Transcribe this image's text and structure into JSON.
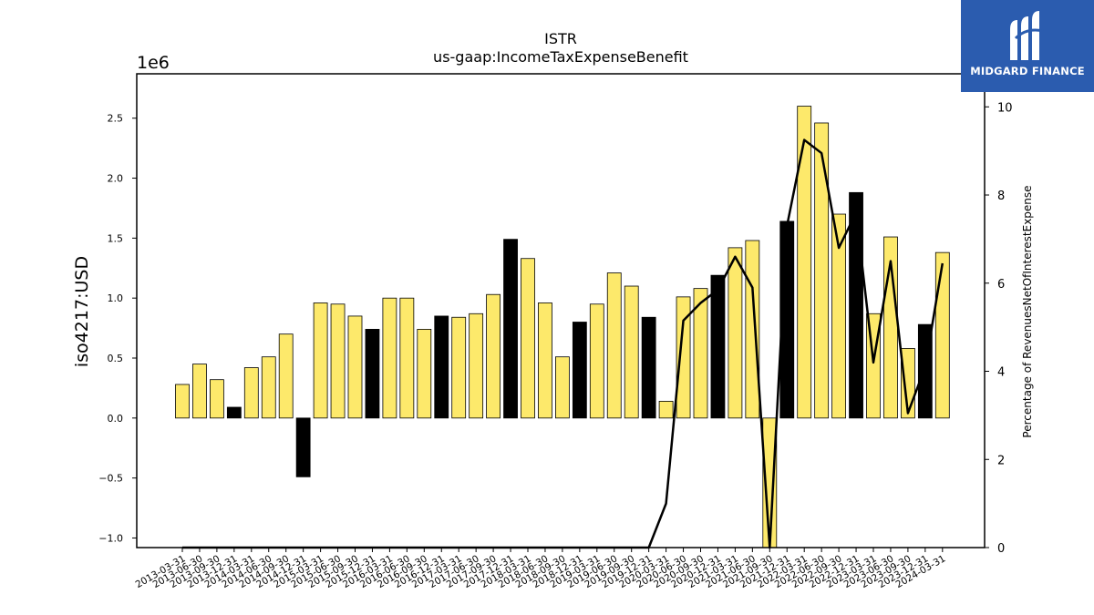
{
  "chart_data": {
    "type": "bar",
    "title": "ISTR",
    "subtitle": "us-gaap:IncomeTaxExpenseBenefit",
    "ylabel": "iso4217:USD",
    "y2label": "Percentage of RevenuesNetOfInterestExpense",
    "y_offset_text": "1e6",
    "ylim": [
      -1.08,
      2.87
    ],
    "y2lim": [
      0,
      10.75
    ],
    "yticks": [
      -1.0,
      -0.5,
      0.0,
      0.5,
      1.0,
      1.5,
      2.0,
      2.5
    ],
    "y2ticks": [
      0,
      2,
      4,
      6,
      8,
      10
    ],
    "categories": [
      "2013-03-31",
      "2013-06-30",
      "2013-09-30",
      "2013-12-31",
      "2014-03-31",
      "2014-06-30",
      "2014-09-30",
      "2014-12-31",
      "2015-03-31",
      "2015-06-30",
      "2015-09-30",
      "2015-12-31",
      "2016-03-31",
      "2016-06-30",
      "2016-09-30",
      "2016-12-31",
      "2017-03-31",
      "2017-06-30",
      "2017-09-30",
      "2017-12-31",
      "2018-03-31",
      "2018-06-30",
      "2018-09-30",
      "2018-12-31",
      "2019-03-31",
      "2019-06-30",
      "2019-09-30",
      "2019-12-31",
      "2020-03-31",
      "2020-06-30",
      "2020-09-30",
      "2020-12-31",
      "2021-03-31",
      "2021-06-30",
      "2021-09-30",
      "2021-12-31",
      "2022-03-31",
      "2022-06-30",
      "2022-09-30",
      "2022-12-31",
      "2023-03-31",
      "2023-06-30",
      "2023-09-30",
      "2023-12-31",
      "2024-03-31"
    ],
    "values": [
      0.28,
      0.45,
      0.32,
      0.09,
      0.42,
      0.51,
      0.7,
      -0.49,
      0.96,
      0.95,
      0.85,
      0.74,
      1.0,
      1.0,
      0.74,
      0.85,
      0.84,
      0.87,
      1.03,
      1.49,
      1.33,
      0.96,
      0.51,
      0.8,
      0.95,
      1.21,
      1.1,
      0.84,
      0.14,
      1.01,
      1.08,
      1.19,
      1.42,
      1.48,
      -1.08,
      1.64,
      2.6,
      2.46,
      1.7,
      1.88,
      0.87,
      1.51,
      0.58,
      0.78,
      1.38
    ],
    "q4_flags": [
      false,
      false,
      false,
      true,
      false,
      false,
      false,
      true,
      false,
      false,
      false,
      true,
      false,
      false,
      false,
      true,
      false,
      false,
      false,
      true,
      false,
      false,
      false,
      true,
      false,
      false,
      false,
      true,
      false,
      false,
      false,
      true,
      false,
      false,
      false,
      true,
      false,
      false,
      false,
      true,
      false,
      false,
      false,
      true,
      false
    ],
    "line_series": {
      "name": "Percentage of RevenuesNetOfInterestExpense",
      "values": [
        0,
        0,
        0,
        0,
        0,
        0,
        0,
        0,
        0,
        0,
        0,
        0,
        0,
        0,
        0,
        0,
        0,
        0,
        0,
        0,
        0,
        0,
        0,
        0,
        0,
        0,
        0,
        0,
        1.0,
        5.15,
        5.55,
        5.85,
        6.6,
        5.9,
        0,
        7.3,
        9.25,
        8.95,
        6.8,
        7.6,
        4.2,
        6.5,
        3.05,
        4.1,
        6.45
      ],
      "gaps": [
        34
      ]
    },
    "colors": {
      "bar": "#fde96b",
      "bar_q4": "#000000",
      "line": "#000000"
    }
  },
  "brand": {
    "name": "MIDGARD FINANCE",
    "bg": "#2b5caf"
  }
}
